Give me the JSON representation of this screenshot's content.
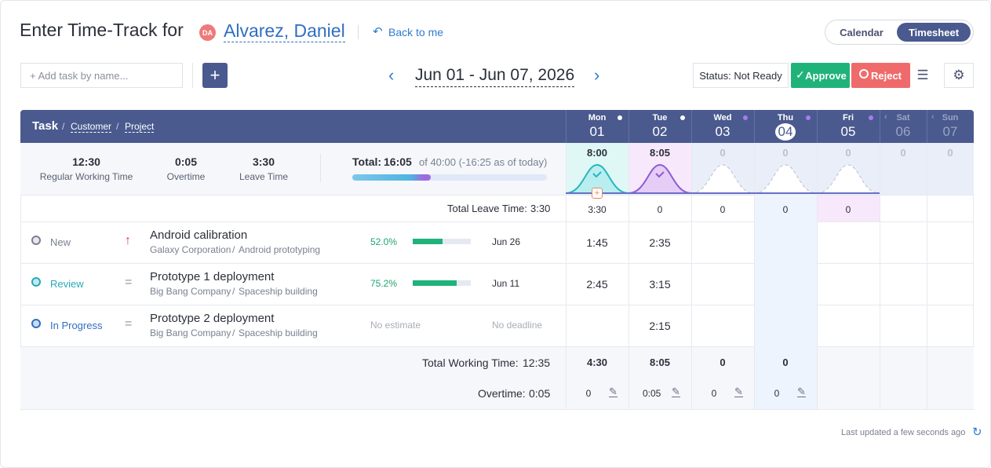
{
  "header": {
    "title": "Enter Time-Track for",
    "avatar": "DA",
    "user": "Alvarez, Daniel",
    "back": "Back to me"
  },
  "view_toggle": [
    "Calendar",
    "Timesheet"
  ],
  "toolbar": {
    "add_task_placeholder": "+ Add task by name...",
    "add_button": "+",
    "date_range": "Jun 01 - Jun 07, 2026",
    "status": "Status: Not Ready",
    "approve": "Approve",
    "reject": "Reject"
  },
  "table": {
    "head": {
      "task": "Task",
      "sep": "/",
      "customer": "Customer",
      "project": "Project"
    },
    "days": [
      {
        "name": "Mon",
        "num": "01",
        "total": "8:00",
        "leave": "3:30",
        "working": "4:30",
        "overtime": "0"
      },
      {
        "name": "Tue",
        "num": "02",
        "total": "8:05",
        "leave": "0",
        "working": "8:05",
        "overtime": "0:05"
      },
      {
        "name": "Wed",
        "num": "03",
        "total": "0",
        "leave": "0",
        "working": "0",
        "overtime": "0"
      },
      {
        "name": "Thu",
        "num": "04",
        "total": "0",
        "leave": "0",
        "working": "0",
        "overtime": "0"
      },
      {
        "name": "Fri",
        "num": "05",
        "total": "0",
        "leave": "0",
        "working": null,
        "overtime": null
      },
      {
        "name": "Sat",
        "num": "06",
        "total": "0",
        "leave": null,
        "working": null,
        "overtime": null
      },
      {
        "name": "Sun",
        "num": "07",
        "total": "0",
        "leave": null,
        "working": null,
        "overtime": null
      }
    ],
    "summary": {
      "regular": "12:30",
      "regular_label": "Regular Working Time",
      "overtime": "0:05",
      "overtime_label": "Overtime",
      "leave": "3:30",
      "leave_label": "Leave Time",
      "total_label": "Total:",
      "total": "16:05",
      "total_of": "of 40:00 (-16:25 as of today)"
    },
    "total_leave_label": "Total Leave Time:",
    "total_leave": "3:30",
    "tasks": [
      {
        "status": "New",
        "title": "Android calibration",
        "customer": "Galaxy Corporation",
        "project": "Android prototyping",
        "progress": "52.0%",
        "deadline": "Jun 26",
        "hours": [
          "1:45",
          "2:35",
          null,
          null,
          null,
          null,
          null
        ]
      },
      {
        "status": "Review",
        "title": "Prototype 1 deployment",
        "customer": "Big Bang Company",
        "project": "Spaceship building",
        "progress": "75.2%",
        "deadline": "Jun 11",
        "hours": [
          "2:45",
          "3:15",
          null,
          null,
          null,
          null,
          null
        ]
      },
      {
        "status": "In Progress",
        "title": "Prototype 2 deployment",
        "customer": "Big Bang Company",
        "project": "Spaceship building",
        "progress": "No estimate",
        "deadline": "No deadline",
        "hours": [
          null,
          "2:15",
          null,
          null,
          null,
          null,
          null
        ]
      }
    ],
    "total_working_label": "Total Working Time:",
    "total_working": "12:35",
    "overtime_label": "Overtime:",
    "overtime": "0:05"
  },
  "last_updated": "Last updated a few seconds ago"
}
